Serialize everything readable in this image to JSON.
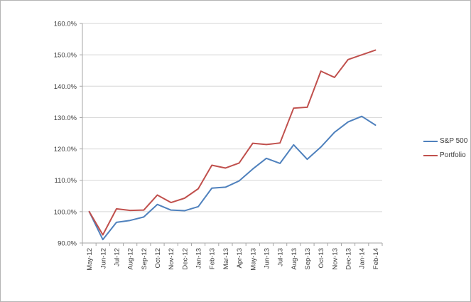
{
  "window": {
    "background": "#ffffff",
    "border_color": "#b4b4b4"
  },
  "colors": {
    "gridline": "#d6d6d6",
    "axis": "#a6a6a6",
    "tick_text": "#3b3b3b"
  },
  "legend": {
    "position": "right"
  },
  "chart_data": {
    "type": "line",
    "title": "",
    "xlabel": "",
    "ylabel": "",
    "grid": "horizontal",
    "legend_position": "right",
    "ylim": [
      90,
      160
    ],
    "yticks": [
      {
        "label": "90.0%",
        "value": 90
      },
      {
        "label": "100.0%",
        "value": 100
      },
      {
        "label": "110.0%",
        "value": 110
      },
      {
        "label": "120.0%",
        "value": 120
      },
      {
        "label": "130.0%",
        "value": 130
      },
      {
        "label": "140.0%",
        "value": 140
      },
      {
        "label": "150.0%",
        "value": 150
      },
      {
        "label": "160.0%",
        "value": 160
      }
    ],
    "categories": [
      "May-12",
      "Jun-12",
      "Jul-12",
      "Aug-12",
      "Sep-12",
      "Oct-12",
      "Nov-12",
      "Dec-12",
      "Jan-13",
      "Feb-13",
      "Mar-13",
      "Apr-13",
      "May-13",
      "Jun-13",
      "Jul-13",
      "Aug-13",
      "Sep-13",
      "Oct-13",
      "Nov-13",
      "Dec-13",
      "Jan-14",
      "Feb-14"
    ],
    "series": [
      {
        "name": "S&P 500",
        "color": "#4f81bd",
        "values": [
          100.0,
          91.1,
          96.6,
          97.2,
          98.3,
          102.3,
          100.5,
          100.3,
          101.6,
          107.5,
          107.8,
          109.8,
          113.6,
          117.0,
          115.4,
          121.3,
          116.7,
          120.6,
          125.3,
          128.6,
          130.4,
          127.6
        ]
      },
      {
        "name": "Portfolio",
        "color": "#c0504d",
        "values": [
          100.0,
          92.6,
          100.9,
          100.4,
          100.5,
          105.3,
          102.9,
          104.3,
          107.3,
          114.8,
          113.9,
          115.5,
          121.8,
          121.4,
          121.9,
          133.0,
          133.3,
          144.8,
          142.8,
          148.5,
          150.0,
          151.5
        ]
      }
    ]
  }
}
